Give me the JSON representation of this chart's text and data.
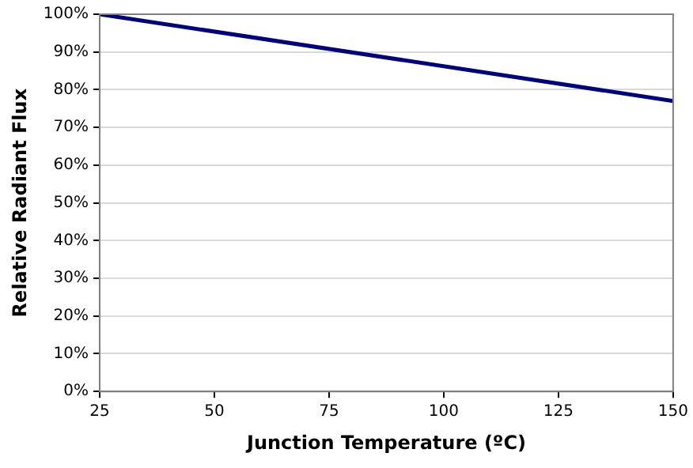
{
  "chart_data": {
    "type": "line",
    "xlabel": "Junction Temperature (ºC)",
    "ylabel": "Relative Radiant Flux",
    "x": [
      25,
      150
    ],
    "series": [
      {
        "color": "#000080",
        "values": [
          100,
          77
        ]
      }
    ],
    "xlim": [
      25,
      150
    ],
    "xticks": [
      25,
      50,
      75,
      100,
      125,
      150
    ],
    "ylim": [
      0,
      100
    ],
    "yticks": [
      {
        "value": 0,
        "label": "0%"
      },
      {
        "value": 10,
        "label": "10%"
      },
      {
        "value": 20,
        "label": "20%"
      },
      {
        "value": 30,
        "label": "30%"
      },
      {
        "value": 40,
        "label": "40%"
      },
      {
        "value": 50,
        "label": "50%"
      },
      {
        "value": 60,
        "label": "60%"
      },
      {
        "value": 70,
        "label": "70%"
      },
      {
        "value": 80,
        "label": "80%"
      },
      {
        "value": 90,
        "label": "90%"
      },
      {
        "value": 100,
        "label": "100%"
      }
    ],
    "grid": "y",
    "legend": false,
    "marker": "none",
    "line_style": "solid"
  }
}
